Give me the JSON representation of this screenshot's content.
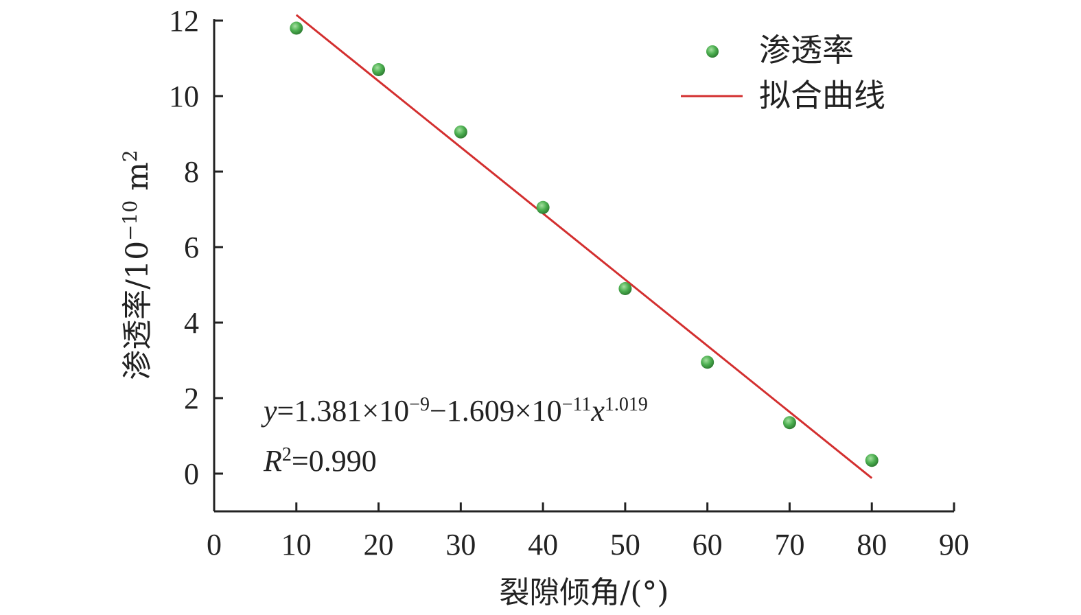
{
  "chart_data": {
    "type": "scatter",
    "xlabel": "裂隙倾角/(°)",
    "ylabel": {
      "main": "渗透率/10",
      "exp": "−10",
      "unit": " m",
      "unit_exp": "2"
    },
    "xlim": [
      0,
      90
    ],
    "ylim": [
      -1,
      12
    ],
    "xticks": [
      0,
      10,
      20,
      30,
      40,
      50,
      60,
      70,
      80,
      90
    ],
    "yticks": [
      0,
      2,
      4,
      6,
      8,
      10,
      12
    ],
    "series": [
      {
        "name": "渗透率",
        "kind": "scatter",
        "color": "#4caf50",
        "x": [
          10,
          20,
          30,
          40,
          50,
          60,
          70,
          80
        ],
        "y": [
          11.8,
          10.7,
          9.05,
          7.05,
          4.9,
          2.95,
          1.35,
          0.35
        ]
      },
      {
        "name": "拟合曲线",
        "kind": "line",
        "color": "#d32f2f",
        "x": [
          10,
          80
        ],
        "y": [
          12.15,
          -0.12
        ]
      }
    ],
    "legend": {
      "placement": "top-right"
    },
    "annotations": {
      "equation": {
        "y": "y",
        "eq1": "=1.381×10",
        "exp1": "−9",
        "eq2": "−1.609×10",
        "exp2": "−11",
        "x": "x",
        "exp3": "1.019"
      },
      "r2": {
        "r": "R",
        "exp": "2",
        "val": "=0.990"
      }
    }
  }
}
